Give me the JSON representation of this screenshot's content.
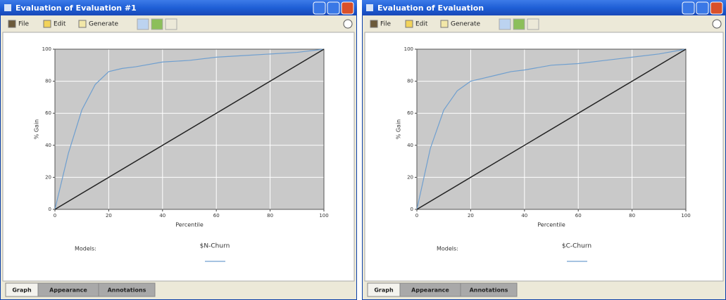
{
  "windows": [
    {
      "title": "Evaluation of Evaluation #1",
      "menu": [
        "File",
        "Edit",
        "Generate"
      ],
      "chart": {
        "type": "line",
        "xlabel": "Percentile",
        "ylabel": "% Gain",
        "legend_title": "Models:",
        "series": [
          {
            "name": "$N-Churn",
            "color": "#6f9fcf",
            "x": [
              0,
              5,
              10,
              15,
              20,
              25,
              30,
              40,
              50,
              60,
              70,
              80,
              90,
              100
            ],
            "values": [
              0,
              35,
              62,
              78,
              86,
              88,
              89,
              92,
              93,
              95,
              96,
              97,
              98,
              100
            ]
          },
          {
            "color": "#222222",
            "x": [
              0,
              100
            ],
            "values": [
              0,
              100
            ]
          }
        ],
        "xlim": [
          0,
          100
        ],
        "ylim": [
          0,
          100
        ],
        "xticks": [
          0,
          20,
          40,
          60,
          80,
          100
        ],
        "yticks": [
          0,
          20,
          40,
          60,
          80,
          100
        ],
        "grid": true
      },
      "tabs": [
        "Graph",
        "Appearance",
        "Annotations"
      ]
    },
    {
      "title": "Evaluation of Evaluation",
      "menu": [
        "File",
        "Edit",
        "Generate"
      ],
      "chart": {
        "type": "line",
        "xlabel": "Percentile",
        "ylabel": "% Gain",
        "legend_title": "Models:",
        "series": [
          {
            "name": "$C-Churn",
            "color": "#6f9fcf",
            "x": [
              0,
              5,
              10,
              15,
              20,
              25,
              30,
              35,
              40,
              50,
              60,
              70,
              80,
              90,
              100
            ],
            "values": [
              0,
              38,
              62,
              74,
              80,
              82,
              84,
              86,
              87,
              90,
              91,
              93,
              95,
              97,
              100
            ]
          },
          {
            "color": "#222222",
            "x": [
              0,
              100
            ],
            "values": [
              0,
              100
            ]
          }
        ],
        "xlim": [
          0,
          100
        ],
        "ylim": [
          0,
          100
        ],
        "xticks": [
          0,
          20,
          40,
          60,
          80,
          100
        ],
        "yticks": [
          0,
          20,
          40,
          60,
          80,
          100
        ],
        "grid": true
      },
      "tabs": [
        "Graph",
        "Appearance",
        "Annotations"
      ]
    }
  ]
}
